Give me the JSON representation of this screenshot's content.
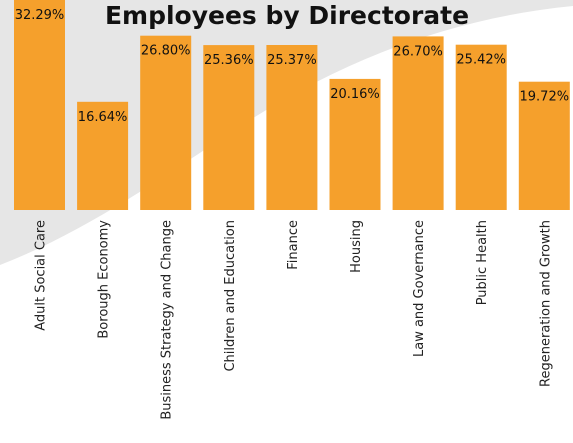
{
  "chart_data": {
    "type": "bar",
    "title": "Employees by Directorate",
    "xlabel": "",
    "ylabel": "",
    "categories": [
      "Adult Social Care",
      "Borough Economy",
      "Business Strategy and Change",
      "Children and Education",
      "Finance",
      "Housing",
      "Law and Governance",
      "Public Health",
      "Regeneration and Growth"
    ],
    "values": [
      32.29,
      16.64,
      26.8,
      25.36,
      25.37,
      20.16,
      26.7,
      25.42,
      19.72
    ],
    "data_labels": [
      "32.29%",
      "16.64%",
      "26.80%",
      "25.36%",
      "25.37%",
      "20.16%",
      "26.70%",
      "25.42%",
      "19.72%"
    ],
    "ylim": [
      0,
      32.29
    ],
    "grid": false,
    "legend": "none",
    "colors": {
      "bar": "#F5A02C",
      "background_shape": "#E6E6E6",
      "title": "#111111",
      "label": "#111111"
    }
  }
}
